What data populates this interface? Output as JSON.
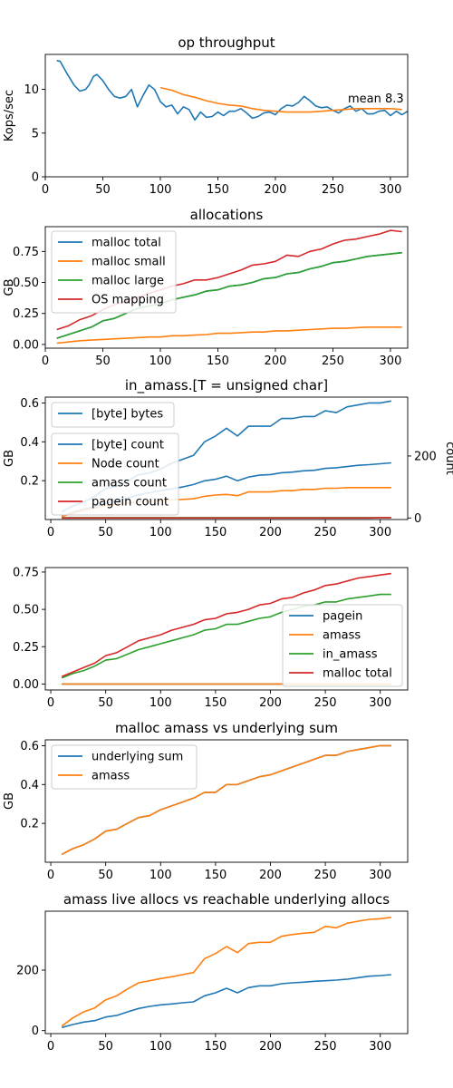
{
  "chart_data": [
    {
      "type": "line",
      "title": "op throughput",
      "ylabel": "Kops/sec",
      "xlim": [
        0,
        315
      ],
      "ylim": [
        0,
        14
      ],
      "xticks": [
        "0",
        "50",
        "100",
        "150",
        "200",
        "250",
        "300"
      ],
      "yticks": [
        "0",
        "5",
        "10"
      ],
      "annotation": "mean 8.3",
      "legend": null,
      "series": [
        {
          "color": "#1f77b4",
          "x": [
            10,
            13,
            18,
            25,
            30,
            35,
            38,
            42,
            45,
            50,
            55,
            60,
            65,
            70,
            75,
            80,
            85,
            90,
            95,
            100,
            105,
            110,
            115,
            120,
            125,
            130,
            135,
            140,
            145,
            150,
            155,
            160,
            165,
            170,
            175,
            180,
            185,
            190,
            195,
            200,
            205,
            210,
            215,
            220,
            225,
            230,
            235,
            240,
            245,
            250,
            255,
            260,
            265,
            270,
            275,
            280,
            285,
            290,
            295,
            300,
            305,
            310,
            315
          ],
          "y": [
            13.3,
            13.2,
            12,
            10.5,
            9.8,
            10,
            10.5,
            11.5,
            11.7,
            11,
            10,
            9.2,
            9,
            9.2,
            10,
            8,
            9.3,
            10.5,
            10,
            8.6,
            8,
            8.2,
            7.2,
            8,
            7.7,
            6.5,
            7.4,
            6.8,
            6.9,
            7.4,
            7,
            7.5,
            7.5,
            7.8,
            7.3,
            6.7,
            6.9,
            7.3,
            7.4,
            7.1,
            7.8,
            8.2,
            8.1,
            8.5,
            9.2,
            8.7,
            8.1,
            7.9,
            8,
            7.6,
            7.3,
            7.8,
            8.1,
            7.5,
            7.8,
            7.2,
            7.2,
            7.5,
            7.6,
            7,
            7.5,
            7.1,
            7.5
          ]
        },
        {
          "color": "#ff7f0e",
          "x": [
            100,
            110,
            120,
            130,
            140,
            150,
            160,
            170,
            180,
            190,
            200,
            210,
            220,
            230,
            240,
            250,
            260,
            270,
            280,
            290,
            300,
            310
          ],
          "y": [
            10.2,
            9.9,
            9.4,
            9.1,
            8.7,
            8.4,
            8.2,
            8.1,
            7.8,
            7.6,
            7.5,
            7.4,
            7.4,
            7.4,
            7.5,
            7.6,
            7.7,
            7.8,
            7.8,
            7.8,
            7.8,
            7.7
          ]
        }
      ]
    },
    {
      "type": "line",
      "title": "allocations",
      "ylabel": "GB",
      "xlim": [
        0,
        315
      ],
      "ylim": [
        -0.03,
        0.95
      ],
      "xticks": [
        "0",
        "50",
        "100",
        "150",
        "200",
        "250",
        "300"
      ],
      "yticks": [
        "0.00",
        "0.25",
        "0.50",
        "0.75"
      ],
      "legend": "top-left",
      "x": [
        10,
        20,
        30,
        40,
        50,
        60,
        70,
        80,
        90,
        100,
        110,
        120,
        130,
        140,
        150,
        160,
        170,
        180,
        190,
        200,
        210,
        220,
        230,
        240,
        250,
        260,
        270,
        280,
        290,
        300,
        310
      ],
      "series": [
        {
          "name": "malloc total",
          "color": "#1f77b4",
          "values": [
            0.05,
            0.08,
            0.11,
            0.14,
            0.19,
            0.21,
            0.25,
            0.29,
            0.31,
            0.33,
            0.36,
            0.38,
            0.4,
            0.43,
            0.44,
            0.47,
            0.48,
            0.5,
            0.53,
            0.54,
            0.57,
            0.58,
            0.61,
            0.63,
            0.66,
            0.67,
            0.69,
            0.71,
            0.72,
            0.73,
            0.74
          ]
        },
        {
          "name": "malloc small",
          "color": "#ff7f0e",
          "values": [
            0.01,
            0.02,
            0.03,
            0.035,
            0.04,
            0.045,
            0.05,
            0.055,
            0.06,
            0.06,
            0.07,
            0.07,
            0.075,
            0.08,
            0.09,
            0.09,
            0.095,
            0.1,
            0.1,
            0.11,
            0.11,
            0.115,
            0.12,
            0.125,
            0.13,
            0.13,
            0.135,
            0.14,
            0.14,
            0.14,
            0.14
          ]
        },
        {
          "name": "malloc large",
          "color": "#2ca02c",
          "values": [
            0.05,
            0.08,
            0.11,
            0.14,
            0.19,
            0.21,
            0.25,
            0.29,
            0.31,
            0.33,
            0.36,
            0.38,
            0.4,
            0.43,
            0.44,
            0.47,
            0.48,
            0.5,
            0.53,
            0.54,
            0.57,
            0.58,
            0.61,
            0.63,
            0.66,
            0.67,
            0.69,
            0.71,
            0.72,
            0.73,
            0.74
          ]
        },
        {
          "name": "OS mapping",
          "color": "#d62728",
          "values": [
            0.12,
            0.15,
            0.2,
            0.23,
            0.28,
            0.32,
            0.35,
            0.38,
            0.41,
            0.44,
            0.47,
            0.49,
            0.52,
            0.52,
            0.54,
            0.57,
            0.6,
            0.64,
            0.65,
            0.67,
            0.72,
            0.71,
            0.75,
            0.77,
            0.81,
            0.84,
            0.85,
            0.87,
            0.89,
            0.92,
            0.91
          ]
        }
      ]
    },
    {
      "type": "line",
      "title": "in_amass.[T = unsigned char]",
      "ylabel": "GB",
      "ylabel_right": "count",
      "xlim": [
        -5,
        325
      ],
      "ylim": [
        0.0,
        0.63
      ],
      "ylim_right": [
        -5,
        390
      ],
      "xticks": [
        "0",
        "50",
        "100",
        "150",
        "200",
        "250",
        "300"
      ],
      "yticks": [
        "0.2",
        "0.4",
        "0.6"
      ],
      "yticks_right": [
        "0",
        "200"
      ],
      "legend": "top-left",
      "x": [
        10,
        20,
        30,
        40,
        50,
        60,
        70,
        80,
        90,
        100,
        110,
        120,
        130,
        140,
        150,
        160,
        170,
        180,
        190,
        200,
        210,
        220,
        230,
        240,
        250,
        260,
        270,
        280,
        290,
        300,
        310
      ],
      "series": [
        {
          "name": "[byte] bytes",
          "color": "#1f77b4",
          "axis": "left",
          "values": [
            0.04,
            0.07,
            0.09,
            0.12,
            0.16,
            0.17,
            0.2,
            0.23,
            0.24,
            0.26,
            0.29,
            0.31,
            0.33,
            0.4,
            0.43,
            0.47,
            0.43,
            0.48,
            0.48,
            0.48,
            0.52,
            0.52,
            0.53,
            0.53,
            0.56,
            0.55,
            0.58,
            0.59,
            0.6,
            0.6,
            0.61
          ]
        },
        {
          "name": "[byte] count",
          "color": "#1f77b4",
          "axis": "right",
          "values": [
            5,
            18,
            28,
            36,
            48,
            55,
            65,
            75,
            82,
            88,
            94,
            100,
            108,
            120,
            125,
            135,
            120,
            132,
            138,
            140,
            146,
            148,
            152,
            154,
            160,
            162,
            166,
            170,
            172,
            175,
            178
          ]
        },
        {
          "name": "Node count",
          "color": "#ff7f0e",
          "axis": "right",
          "values": [
            5,
            15,
            25,
            32,
            40,
            44,
            48,
            52,
            54,
            56,
            58,
            60,
            62,
            70,
            74,
            76,
            72,
            84,
            84,
            84,
            88,
            88,
            92,
            92,
            96,
            96,
            98,
            98,
            98,
            98,
            98
          ]
        },
        {
          "name": "amass count",
          "color": "#2ca02c",
          "axis": "right",
          "values": [
            1,
            1,
            1,
            1,
            1,
            1,
            1,
            1,
            1,
            1,
            1,
            1,
            1,
            1,
            1,
            1,
            1,
            1,
            1,
            1,
            1,
            1,
            1,
            1,
            1,
            1,
            1,
            1,
            1,
            1,
            1
          ]
        },
        {
          "name": "pagein count",
          "color": "#d62728",
          "axis": "right",
          "values": [
            0,
            0,
            0,
            0,
            0,
            0,
            0,
            0,
            0,
            0,
            0,
            0,
            0,
            0,
            0,
            0,
            0,
            0,
            0,
            0,
            0,
            0,
            0,
            0,
            0,
            0,
            0,
            0,
            0,
            1,
            1
          ]
        }
      ]
    },
    {
      "type": "line",
      "title": "",
      "ylabel": "",
      "xlim": [
        -5,
        325
      ],
      "ylim": [
        -0.04,
        0.78
      ],
      "xticks": [
        "0",
        "50",
        "100",
        "150",
        "200",
        "250",
        "300"
      ],
      "yticks": [
        "0.00",
        "0.25",
        "0.50",
        "0.75"
      ],
      "legend": "bottom-right",
      "x": [
        10,
        20,
        30,
        40,
        50,
        60,
        70,
        80,
        90,
        100,
        110,
        120,
        130,
        140,
        150,
        160,
        170,
        180,
        190,
        200,
        210,
        220,
        230,
        240,
        250,
        260,
        270,
        280,
        290,
        300,
        310
      ],
      "series": [
        {
          "name": "pagein",
          "color": "#1f77b4",
          "values": [
            0,
            0,
            0,
            0,
            0,
            0,
            0,
            0,
            0,
            0,
            0,
            0,
            0,
            0,
            0,
            0,
            0,
            0,
            0,
            0,
            0,
            0,
            0,
            0,
            0,
            0,
            0,
            0,
            0,
            0,
            0
          ]
        },
        {
          "name": "amass",
          "color": "#ff7f0e",
          "values": [
            0,
            0,
            0,
            0,
            0,
            0,
            0,
            0,
            0,
            0,
            0,
            0,
            0,
            0,
            0,
            0,
            0,
            0,
            0,
            0,
            0,
            0,
            0,
            0,
            0,
            0,
            0,
            0,
            0,
            0,
            0
          ]
        },
        {
          "name": "in_amass",
          "color": "#2ca02c",
          "values": [
            0.04,
            0.07,
            0.09,
            0.12,
            0.16,
            0.17,
            0.2,
            0.23,
            0.25,
            0.27,
            0.29,
            0.31,
            0.33,
            0.36,
            0.37,
            0.4,
            0.4,
            0.42,
            0.44,
            0.45,
            0.48,
            0.5,
            0.52,
            0.53,
            0.55,
            0.55,
            0.57,
            0.58,
            0.59,
            0.6,
            0.6
          ]
        },
        {
          "name": "malloc total",
          "color": "#d62728",
          "values": [
            0.05,
            0.08,
            0.11,
            0.14,
            0.19,
            0.21,
            0.25,
            0.29,
            0.31,
            0.33,
            0.36,
            0.38,
            0.4,
            0.43,
            0.44,
            0.47,
            0.48,
            0.5,
            0.53,
            0.54,
            0.57,
            0.58,
            0.61,
            0.63,
            0.66,
            0.67,
            0.69,
            0.71,
            0.72,
            0.73,
            0.74
          ]
        }
      ]
    },
    {
      "type": "line",
      "title": "malloc amass vs underlying sum",
      "ylabel": "GB",
      "xlim": [
        -5,
        325
      ],
      "ylim": [
        0.0,
        0.63
      ],
      "xticks": [
        "0",
        "50",
        "100",
        "150",
        "200",
        "250",
        "300"
      ],
      "yticks": [
        "0.2",
        "0.4",
        "0.6"
      ],
      "legend": "top-left",
      "x": [
        10,
        20,
        30,
        40,
        50,
        60,
        70,
        80,
        90,
        100,
        110,
        120,
        130,
        140,
        150,
        160,
        170,
        180,
        190,
        200,
        210,
        220,
        230,
        240,
        250,
        260,
        270,
        280,
        290,
        300,
        310
      ],
      "series": [
        {
          "name": "underlying sum",
          "color": "#1f77b4",
          "values": [
            0.04,
            0.07,
            0.09,
            0.12,
            0.16,
            0.17,
            0.2,
            0.23,
            0.24,
            0.27,
            0.29,
            0.31,
            0.33,
            0.36,
            0.36,
            0.4,
            0.4,
            0.42,
            0.44,
            0.45,
            0.47,
            0.49,
            0.51,
            0.53,
            0.55,
            0.55,
            0.57,
            0.58,
            0.59,
            0.6,
            0.6
          ]
        },
        {
          "name": "amass",
          "color": "#ff7f0e",
          "values": [
            0.04,
            0.07,
            0.09,
            0.12,
            0.16,
            0.17,
            0.2,
            0.23,
            0.24,
            0.27,
            0.29,
            0.31,
            0.33,
            0.36,
            0.36,
            0.4,
            0.4,
            0.42,
            0.44,
            0.45,
            0.47,
            0.49,
            0.51,
            0.53,
            0.55,
            0.55,
            0.57,
            0.58,
            0.59,
            0.6,
            0.6
          ]
        }
      ]
    },
    {
      "type": "line",
      "title": "amass live allocs vs reachable underlying allocs",
      "ylabel": "",
      "xlim": [
        -5,
        325
      ],
      "ylim": [
        -10,
        395
      ],
      "xticks": [
        "0",
        "50",
        "100",
        "150",
        "200",
        "250",
        "300"
      ],
      "yticks": [
        "0",
        "200"
      ],
      "legend": null,
      "x": [
        10,
        20,
        30,
        40,
        50,
        60,
        70,
        80,
        90,
        100,
        110,
        120,
        130,
        140,
        150,
        160,
        170,
        180,
        190,
        200,
        210,
        220,
        230,
        240,
        250,
        260,
        270,
        280,
        290,
        300,
        310
      ],
      "series": [
        {
          "color": "#1f77b4",
          "values": [
            10,
            20,
            28,
            33,
            45,
            50,
            62,
            73,
            80,
            85,
            88,
            92,
            95,
            115,
            125,
            140,
            125,
            142,
            148,
            148,
            155,
            158,
            160,
            163,
            165,
            167,
            170,
            175,
            180,
            182,
            185
          ]
        },
        {
          "color": "#ff7f0e",
          "values": [
            15,
            42,
            62,
            75,
            102,
            115,
            138,
            158,
            165,
            172,
            178,
            185,
            192,
            238,
            255,
            278,
            258,
            288,
            292,
            292,
            312,
            318,
            322,
            325,
            345,
            340,
            355,
            362,
            368,
            370,
            375
          ]
        }
      ]
    }
  ]
}
